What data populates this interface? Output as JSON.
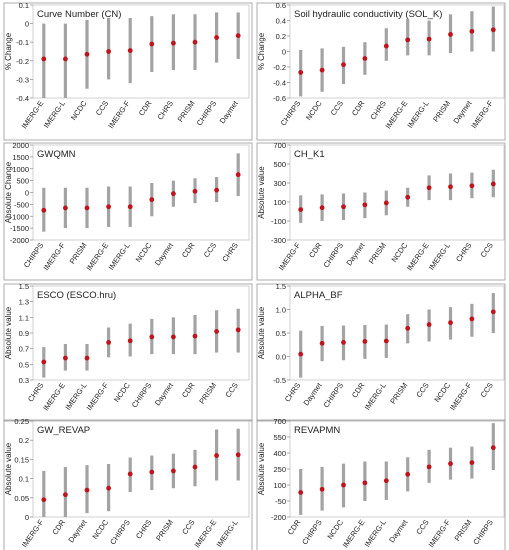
{
  "chart_data": [
    {
      "type": "errorbar",
      "title": "Curve Number (CN)",
      "ylabel": "% Change",
      "ylim": [
        -0.4,
        0.1
      ],
      "yticks": [
        -0.4,
        -0.3,
        -0.2,
        -0.1,
        0,
        0.1
      ],
      "ytick_labels": [
        "-0.4",
        "-0.3",
        "-0.2",
        "-0.1",
        "0",
        "0.1"
      ],
      "categories": [
        "IMERG-E",
        "IMERG-L",
        "NCDC",
        "CCS",
        "IMERG-F",
        "CDR",
        "CHRS",
        "PRISM",
        "CHIRPS",
        "Daymet"
      ],
      "values": [
        -0.19,
        -0.19,
        -0.165,
        -0.15,
        -0.145,
        -0.11,
        -0.105,
        -0.1,
        -0.075,
        -0.065
      ],
      "lower": [
        -0.4,
        -0.4,
        -0.35,
        -0.3,
        -0.32,
        -0.26,
        -0.25,
        -0.25,
        -0.21,
        -0.19
      ],
      "upper": [
        0.0,
        0.0,
        0.02,
        0.03,
        0.03,
        0.04,
        0.05,
        0.05,
        0.06,
        0.06
      ]
    },
    {
      "type": "errorbar",
      "title": "Soil hydraulic conductivity (SOL_K)",
      "ylabel": "% Change",
      "ylim": [
        -0.6,
        0.6
      ],
      "yticks": [
        -0.6,
        -0.4,
        -0.2,
        0,
        0.2,
        0.4,
        0.6
      ],
      "ytick_labels": [
        "-0.6",
        "-0.4",
        "-0.2",
        "0",
        "0.2",
        "0.4",
        "0.6"
      ],
      "categories": [
        "CHIRPS",
        "NCDC",
        "CCS",
        "CDR",
        "CHRS",
        "IMERG-E",
        "IMERG-L",
        "PRISM",
        "Daymet",
        "IMERG-F"
      ],
      "values": [
        -0.27,
        -0.24,
        -0.17,
        -0.09,
        0.07,
        0.15,
        0.16,
        0.22,
        0.26,
        0.28
      ],
      "lower": [
        -0.58,
        -0.52,
        -0.42,
        -0.3,
        -0.12,
        -0.05,
        -0.05,
        -0.02,
        0.0,
        0.0
      ],
      "upper": [
        0.02,
        0.04,
        0.06,
        0.12,
        0.3,
        0.42,
        0.4,
        0.48,
        0.52,
        0.58
      ]
    },
    {
      "type": "errorbar",
      "title": "GWQMN",
      "ylabel": "Absolute Change",
      "ylim": [
        -2000,
        2000
      ],
      "yticks": [
        -2000,
        -1500,
        -1000,
        -500,
        0,
        500,
        1000,
        1500,
        2000
      ],
      "ytick_labels": [
        "-2000",
        "-1500",
        "-1000",
        "-500",
        "0",
        "500",
        "1000",
        "1500",
        "2000"
      ],
      "categories": [
        "CHIRPS",
        "IMERG-F",
        "PRISM",
        "IMERG-E",
        "IMERG-L",
        "NCDC",
        "Daymet",
        "CDR",
        "CCS",
        "CHRS"
      ],
      "values": [
        -750,
        -650,
        -650,
        -600,
        -600,
        -300,
        -50,
        50,
        100,
        750
      ],
      "lower": [
        -1650,
        -1500,
        -1500,
        -1450,
        -1450,
        -1000,
        -600,
        -450,
        -400,
        -150
      ],
      "upper": [
        200,
        200,
        200,
        250,
        250,
        400,
        500,
        600,
        650,
        1650
      ]
    },
    {
      "type": "errorbar",
      "title": "CH_K1",
      "ylabel": "Absolute value",
      "ylim": [
        -300,
        700
      ],
      "yticks": [
        -300,
        -100,
        100,
        300,
        500,
        700
      ],
      "ytick_labels": [
        "-300",
        "-100",
        "100",
        "300",
        "500",
        "700"
      ],
      "categories": [
        "IMERG-F",
        "CDR",
        "CHIRPS",
        "Daymet",
        "PRISM",
        "NCDC",
        "IMERG-E",
        "IMERG-L",
        "CHRS",
        "CCS"
      ],
      "values": [
        20,
        40,
        50,
        70,
        90,
        150,
        250,
        260,
        270,
        290
      ],
      "lower": [
        -120,
        -100,
        -90,
        -70,
        -40,
        50,
        120,
        120,
        140,
        150
      ],
      "upper": [
        170,
        180,
        190,
        200,
        220,
        250,
        380,
        400,
        410,
        440
      ]
    },
    {
      "type": "errorbar",
      "title": "ESCO (ESCO.hru)",
      "ylabel": "Absolute value",
      "ylim": [
        0.3,
        1.5
      ],
      "yticks": [
        0.3,
        0.5,
        0.7,
        0.9,
        1.1,
        1.3,
        1.5
      ],
      "ytick_labels": [
        "0.3",
        "0.5",
        "0.7",
        "0.9",
        "1.1",
        "1.3",
        "1.5"
      ],
      "categories": [
        "CHRS",
        "IMERG-E",
        "IMERG-L",
        "IMERG-F",
        "NCDC",
        "CHIRPS",
        "Daymet",
        "CDR",
        "PRISM",
        "CCS"
      ],
      "values": [
        0.53,
        0.58,
        0.58,
        0.78,
        0.8,
        0.85,
        0.85,
        0.86,
        0.92,
        0.94
      ],
      "lower": [
        0.33,
        0.42,
        0.42,
        0.59,
        0.6,
        0.63,
        0.63,
        0.63,
        0.65,
        0.65
      ],
      "upper": [
        0.72,
        0.76,
        0.76,
        0.97,
        1.02,
        1.08,
        1.1,
        1.13,
        1.19,
        1.21
      ]
    },
    {
      "type": "errorbar",
      "title": "ALPHA_BF",
      "ylabel": "Absolute value",
      "ylim": [
        -0.5,
        1.5
      ],
      "yticks": [
        -0.5,
        0.0,
        0.5,
        1.0,
        1.5
      ],
      "ytick_labels": [
        "-0.5",
        "0.0",
        "0.5",
        "1.0",
        "1.5"
      ],
      "categories": [
        "CHRS",
        "Daymet",
        "CHIRPS",
        "CDR",
        "IMERG-L",
        "PRISM",
        "CCS",
        "NCDC",
        "IMERG-F",
        "CCS"
      ],
      "values": [
        0.05,
        0.28,
        0.3,
        0.32,
        0.33,
        0.6,
        0.68,
        0.72,
        0.8,
        0.95
      ],
      "lower": [
        -0.45,
        -0.1,
        -0.08,
        -0.05,
        -0.03,
        0.28,
        0.32,
        0.36,
        0.42,
        0.5
      ],
      "upper": [
        0.55,
        0.65,
        0.66,
        0.67,
        0.68,
        0.9,
        1.0,
        1.05,
        1.12,
        1.35
      ]
    },
    {
      "type": "errorbar",
      "title": "GW_REVAP",
      "ylabel": "Absolute value",
      "ylim": [
        0,
        0.25
      ],
      "yticks": [
        0,
        0.05,
        0.1,
        0.15,
        0.2,
        0.25
      ],
      "ytick_labels": [
        "0",
        "0.05",
        "0.1",
        "0.15",
        "0.2",
        "0.25"
      ],
      "categories": [
        "IMERG-F",
        "CDR",
        "Daymet",
        "NCDC",
        "CHIRPS",
        "CHRS",
        "PRISM",
        "CCS",
        "IMERG-E",
        "IMERG-L"
      ],
      "values": [
        0.045,
        0.058,
        0.07,
        0.075,
        0.112,
        0.117,
        0.12,
        0.13,
        0.16,
        0.162
      ],
      "lower": [
        0.0,
        0.0,
        0.01,
        0.015,
        0.065,
        0.07,
        0.075,
        0.08,
        0.095,
        0.095
      ],
      "upper": [
        0.12,
        0.13,
        0.135,
        0.138,
        0.155,
        0.16,
        0.165,
        0.175,
        0.228,
        0.23
      ]
    },
    {
      "type": "errorbar",
      "title": "REVAPMN",
      "ylabel": "Absolute value",
      "ylim": [
        -200,
        700
      ],
      "yticks": [
        -200,
        -50,
        100,
        250,
        400,
        550,
        700
      ],
      "ytick_labels": [
        "-200",
        "-50",
        "100",
        "250",
        "400",
        "550",
        "700"
      ],
      "categories": [
        "CDR",
        "CHIRPS",
        "NCDC",
        "IMERG-E",
        "IMERG-L",
        "Daymet",
        "CCS",
        "IMERG-F",
        "PRISM",
        "CHIRPS"
      ],
      "values": [
        30,
        60,
        100,
        120,
        140,
        200,
        270,
        300,
        310,
        450
      ],
      "lower": [
        -180,
        -140,
        -110,
        -50,
        -40,
        40,
        120,
        150,
        160,
        240
      ],
      "upper": [
        250,
        270,
        300,
        320,
        320,
        360,
        430,
        450,
        460,
        680
      ]
    }
  ]
}
